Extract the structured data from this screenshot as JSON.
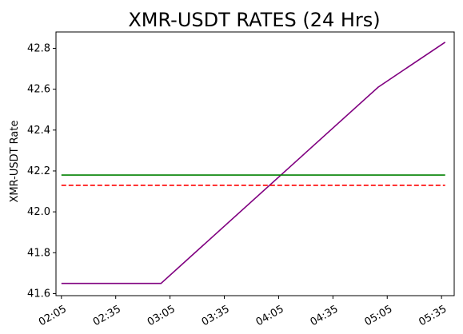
{
  "chart_data": {
    "type": "line",
    "title": "XMR-USDT RATES (24 Hrs)",
    "xlabel": "",
    "ylabel": "XMR-USDT Rate",
    "x_unit": "time",
    "xlim": [
      "02:02",
      "05:42"
    ],
    "ylim": [
      41.59,
      42.88
    ],
    "x_ticks": [
      "02:05",
      "02:35",
      "03:05",
      "03:35",
      "04:05",
      "04:35",
      "05:05",
      "05:35"
    ],
    "y_ticks": [
      41.6,
      41.8,
      42.0,
      42.2,
      42.4,
      42.6,
      42.8
    ],
    "grid": false,
    "series": [
      {
        "color": "#800080",
        "style": "solid",
        "x": [
          "02:05",
          "03:00",
          "05:00",
          "05:37"
        ],
        "y": [
          41.65,
          41.65,
          42.61,
          42.83
        ]
      },
      {
        "color": "#008000",
        "style": "solid",
        "x": [
          "02:05",
          "05:37"
        ],
        "y": [
          42.18,
          42.18
        ]
      },
      {
        "color": "#ff0000",
        "style": "dashed",
        "x": [
          "02:05",
          "05:37"
        ],
        "y": [
          42.13,
          42.13
        ]
      }
    ]
  }
}
